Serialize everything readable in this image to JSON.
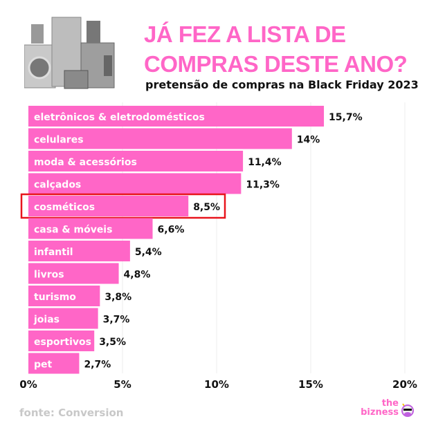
{
  "header": {
    "title_line1": "JÁ FEZ A LISTA DE",
    "title_line2": "COMPRAS DESTE ANO?",
    "subtitle": "pretensão de compras na Black Friday 2023"
  },
  "footer": {
    "source": "fonte: Conversion",
    "logo_line1": "the",
    "logo_line2": "bizness"
  },
  "colors": {
    "bar": "#ff66c7",
    "highlight": "#e8141c",
    "text": "#111111"
  },
  "chart_data": {
    "type": "bar",
    "orientation": "horizontal",
    "categories": [
      "eletrônicos & eletrodomésticos",
      "celulares",
      "moda & acessórios",
      "calçados",
      "cosméticos",
      "casa & móveis",
      "infantil",
      "livros",
      "turismo",
      "joias",
      "esportivos",
      "pet"
    ],
    "values": [
      15.7,
      14,
      11.4,
      11.3,
      8.5,
      6.6,
      5.4,
      4.8,
      3.8,
      3.7,
      3.5,
      2.7
    ],
    "data_labels": [
      "15,7%",
      "14%",
      "11,4%",
      "11,3%",
      "8,5%",
      "6,6%",
      "5,4%",
      "4,8%",
      "3,8%",
      "3,7%",
      "3,5%",
      "2,7%"
    ],
    "xlim": [
      0,
      20
    ],
    "x_ticks": [
      0,
      5,
      10,
      15,
      20
    ],
    "x_tick_labels": [
      "0%",
      "5%",
      "10%",
      "15%",
      "20%"
    ],
    "grid": "vertical",
    "highlighted_category": "cosméticos"
  }
}
